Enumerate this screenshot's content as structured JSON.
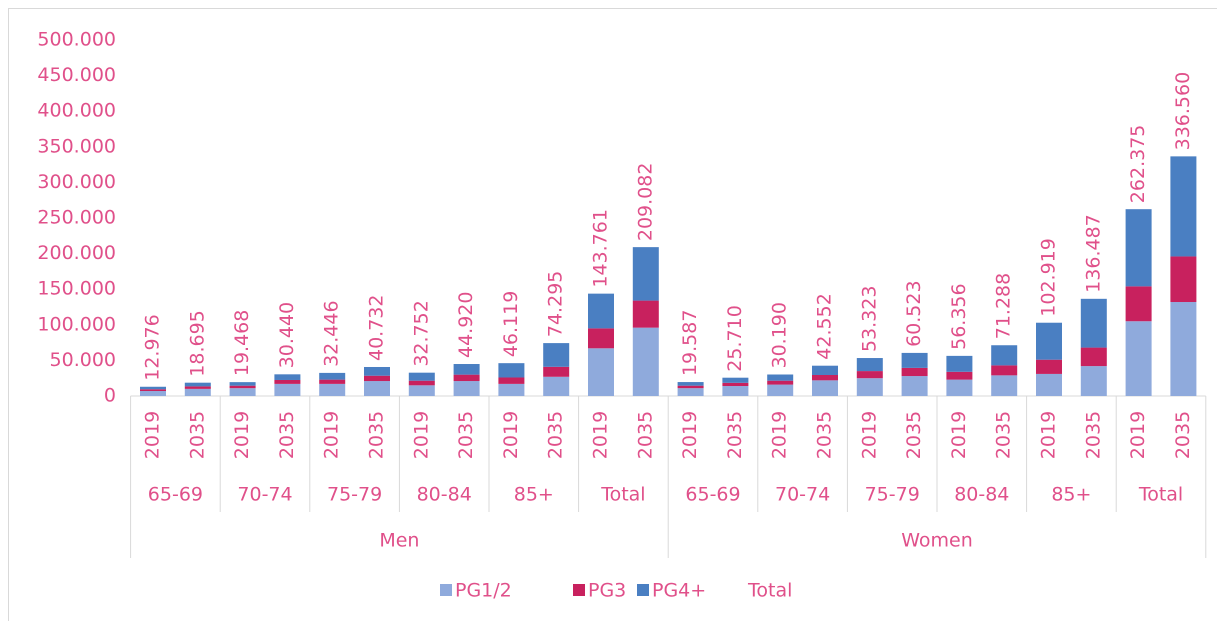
{
  "chart_data": {
    "type": "stacked_bar",
    "categories": [
      "2019",
      "2035",
      "2019",
      "2035",
      "2019",
      "2035",
      "2019",
      "2035",
      "2019",
      "2035",
      "2019",
      "2035",
      "2019",
      "2035",
      "2019",
      "2035",
      "2019",
      "2035",
      "2019",
      "2035",
      "2019",
      "2035",
      "2019",
      "2035"
    ],
    "groups": [
      "65-69",
      "70-74",
      "75-79",
      "80-84",
      "85+",
      "Total",
      "65-69",
      "70-74",
      "75-79",
      "80-84",
      "85+",
      "Total"
    ],
    "genders": [
      "Men",
      "Women"
    ],
    "series": [
      {
        "name": "PG1/2",
        "color": "#8faadc",
        "values": [
          7000,
          10000,
          11000,
          17000,
          17000,
          21000,
          15000,
          21000,
          17000,
          27000,
          67000,
          96000,
          11000,
          14000,
          16000,
          22000,
          25000,
          28000,
          23000,
          29000,
          31000,
          42000,
          105000,
          132000
        ]
      },
      {
        "name": "PG3",
        "color": "#c8215e",
        "values": [
          2500,
          3500,
          3500,
          5500,
          6000,
          7500,
          6500,
          9000,
          9000,
          14000,
          28000,
          38000,
          3500,
          4500,
          5500,
          7500,
          10000,
          11500,
          11000,
          14000,
          20000,
          26000,
          49000,
          64000
        ]
      },
      {
        "name": "PG4+",
        "color": "#4a7fc2",
        "values": [
          3476,
          5195,
          4968,
          7940,
          9446,
          12232,
          11252,
          14920,
          20119,
          33295,
          48761,
          75082,
          5087,
          7210,
          8690,
          13052,
          18323,
          21023,
          22356,
          28288,
          51919,
          68487,
          108375,
          140560
        ]
      },
      {
        "name": "Total",
        "values": [
          12976,
          18695,
          19468,
          30440,
          32446,
          40732,
          32752,
          44920,
          46119,
          74295,
          143761,
          209082,
          19587,
          25710,
          30190,
          42552,
          53323,
          60523,
          56356,
          71288,
          102919,
          136487,
          262375,
          336560
        ],
        "value_labels": [
          "12.976",
          "18.695",
          "19.468",
          "30.440",
          "32.446",
          "40.732",
          "32.752",
          "44.920",
          "46.119",
          "74.295",
          "143.761",
          "209.082",
          "19.587",
          "25.710",
          "30.190",
          "42.552",
          "53.323",
          "60.523",
          "56.356",
          "71.288",
          "102.919",
          "136.487",
          "262.375",
          "336.560"
        ]
      }
    ],
    "ylim": [
      0,
      500000
    ],
    "yticks": [
      0,
      {
        "value": 50000,
        "label": "50.000"
      },
      {
        "value": 100000,
        "label": "100.000"
      },
      {
        "value": 150000,
        "label": "150.000"
      },
      {
        "value": 200000,
        "label": "200.000"
      },
      {
        "value": 250000,
        "label": "250.000"
      },
      {
        "value": 300000,
        "label": "300.000"
      },
      {
        "value": 350000,
        "label": "350.000"
      },
      {
        "value": 400000,
        "label": "400.000"
      },
      {
        "value": 450000,
        "label": "450.000"
      },
      {
        "value": 500000,
        "label": "500.000"
      }
    ],
    "legend": "bottom"
  }
}
